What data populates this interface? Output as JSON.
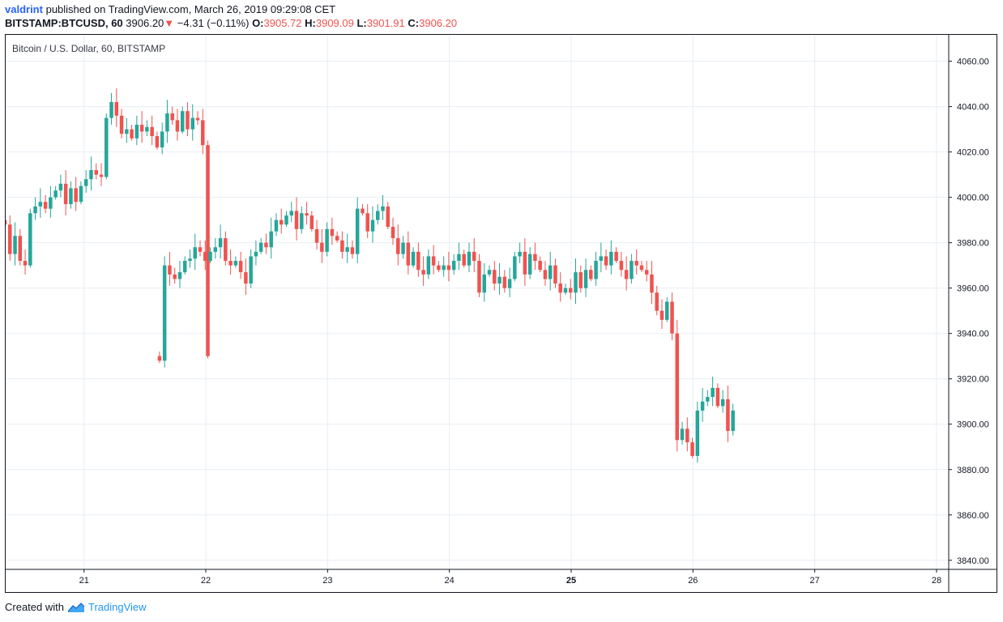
{
  "header": {
    "author": "valdrint",
    "published_text": "published on TradingView.com, March 26, 2019 09:29:08 CET",
    "symbol": "BITSTAMP:BTCUSD, 60",
    "price": "3906.20",
    "change_arrow": "▼",
    "change": "−4.31 (−0.11%)",
    "o_label": "O:",
    "o_value": "3905.72",
    "h_label": "H:",
    "h_value": "3909.09",
    "l_label": "L:",
    "l_value": "3901.91",
    "c_label": "C:",
    "c_value": "3906.20"
  },
  "colors": {
    "up": "#26a69a",
    "down": "#ef5350",
    "grid": "#e8eef5",
    "border": "#131722",
    "brand": "#2196f3"
  },
  "chart_data": {
    "type": "candlestick",
    "title": "Bitcoin / U.S. Dollar, 60, BITSTAMP",
    "interval_hours": 1,
    "x_axis": {
      "range_days": [
        20.35,
        28.1
      ],
      "tick_labels": [
        "21",
        "22",
        "23",
        "24",
        "25",
        "26",
        "27",
        "28"
      ],
      "bold_ticks": [
        "25"
      ]
    },
    "y_axis": {
      "range": [
        3836,
        4072
      ],
      "tick_values": [
        3840,
        3860,
        3880,
        3900,
        3920,
        3940,
        3960,
        3980,
        4000,
        4020,
        4040,
        4060
      ],
      "tick_labels": [
        "3840.00",
        "3860.00",
        "3880.00",
        "3900.00",
        "3920.00",
        "3940.00",
        "3960.00",
        "3980.00",
        "4000.00",
        "4020.00",
        "4040.00",
        "4060.00"
      ]
    },
    "grid": true,
    "segments": [
      {
        "start_day": 20.35,
        "closes": [
          3988,
          3975,
          3983,
          3972,
          3970,
          3993,
          3996,
          3998,
          3995,
          4000,
          4003,
          4006,
          3997,
          4004,
          3998,
          4005,
          4008,
          4012,
          4010,
          4009,
          4035,
          4042,
          4036,
          4028,
          4030,
          4026,
          4032,
          4029,
          4031,
          4027,
          4022,
          4029,
          4037,
          4034,
          4029,
          4038,
          4030,
          4035,
          4034,
          4023,
          3930
        ]
      },
      {
        "start_day": 21.62,
        "closes": [
          3928,
          3970,
          3966,
          3964,
          3967,
          3972,
          3973,
          3978,
          3976,
          3972,
          3976,
          3978,
          3982,
          3972,
          3970,
          3972,
          3967,
          3962,
          3974,
          3976,
          3980,
          3978,
          3985,
          3990,
          3988,
          3992,
          3994,
          3986,
          3993,
          3992,
          3986,
          3980,
          3976,
          3986,
          3983,
          3981,
          3976,
          3978,
          3975,
          3995,
          3993,
          3985,
          3990,
          3994,
          3996,
          3987,
          3982,
          3975,
          3980,
          3970,
          3976,
          3968,
          3966,
          3974,
          3970,
          3968,
          3970,
          3968,
          3972,
          3975,
          3970,
          3976,
          3972,
          3958,
          3966,
          3968,
          3962,
          3965,
          3960,
          3964,
          3974,
          3976,
          3966,
          3975,
          3972,
          3968,
          3964,
          3970,
          3962,
          3958,
          3960,
          3958,
          3967,
          3960,
          3968,
          3964,
          3972,
          3974,
          3970,
          3976,
          3972,
          3968,
          3964,
          3972,
          3970,
          3968,
          3966,
          3958,
          3950,
          3946,
          3954,
          3940,
          3893,
          3898,
          3892,
          3886,
          3906,
          3910,
          3912,
          3916,
          3908,
          3911,
          3897,
          3906
        ]
      }
    ]
  },
  "footer": {
    "created_with": "Created with",
    "brand": "TradingView"
  }
}
